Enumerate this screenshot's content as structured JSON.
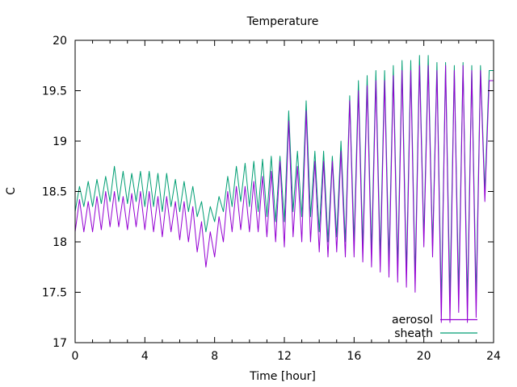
{
  "chart_data": {
    "type": "line",
    "title": "Temperature",
    "xlabel": "Time [hour]",
    "ylabel": "C",
    "xlim": [
      0,
      24
    ],
    "ylim": [
      17,
      20
    ],
    "xticks": [
      0,
      4,
      8,
      12,
      16,
      20,
      24
    ],
    "yticks": [
      17,
      17.5,
      18,
      18.5,
      19,
      19.5,
      20
    ],
    "grid": false,
    "legend_position": "bottom-right",
    "series": [
      {
        "name": "aerosol",
        "color": "#9400d3",
        "x": [
          0.0,
          0.25,
          0.5,
          0.75,
          1.0,
          1.25,
          1.5,
          1.75,
          2.0,
          2.25,
          2.5,
          2.75,
          3.0,
          3.25,
          3.5,
          3.75,
          4.0,
          4.25,
          4.5,
          4.75,
          5.0,
          5.25,
          5.5,
          5.75,
          6.0,
          6.25,
          6.5,
          6.75,
          7.0,
          7.25,
          7.5,
          7.75,
          8.0,
          8.25,
          8.5,
          8.75,
          9.0,
          9.25,
          9.5,
          9.75,
          10.0,
          10.25,
          10.5,
          10.75,
          11.0,
          11.25,
          11.5,
          11.75,
          12.0,
          12.25,
          12.5,
          12.75,
          13.0,
          13.25,
          13.5,
          13.75,
          14.0,
          14.25,
          14.5,
          14.75,
          15.0,
          15.25,
          15.5,
          15.75,
          16.0,
          16.25,
          16.5,
          16.75,
          17.0,
          17.25,
          17.5,
          17.75,
          18.0,
          18.25,
          18.5,
          18.75,
          19.0,
          19.25,
          19.5,
          19.75,
          20.0,
          20.25,
          20.5,
          20.75,
          21.0,
          21.25,
          21.5,
          21.75,
          22.0,
          22.25,
          22.5,
          22.75,
          23.0,
          23.25,
          23.5,
          23.75,
          24.0
        ],
        "y": [
          18.1,
          18.42,
          18.1,
          18.4,
          18.1,
          18.45,
          18.12,
          18.5,
          18.15,
          18.5,
          18.15,
          18.45,
          18.12,
          18.48,
          18.15,
          18.5,
          18.12,
          18.5,
          18.1,
          18.45,
          18.05,
          18.45,
          18.1,
          18.4,
          18.02,
          18.4,
          18.0,
          18.35,
          17.9,
          18.2,
          17.75,
          18.1,
          17.85,
          18.25,
          18.0,
          18.5,
          18.1,
          18.55,
          18.12,
          18.55,
          18.1,
          18.6,
          18.1,
          18.65,
          18.05,
          18.7,
          18.0,
          18.8,
          17.95,
          19.2,
          18.05,
          18.75,
          18.0,
          19.3,
          18.0,
          18.8,
          17.9,
          18.8,
          17.85,
          18.8,
          17.9,
          18.9,
          17.85,
          19.4,
          17.85,
          19.5,
          17.8,
          19.55,
          17.75,
          19.6,
          17.7,
          19.6,
          17.65,
          19.65,
          17.6,
          19.7,
          17.55,
          19.7,
          17.5,
          19.75,
          17.95,
          19.75,
          17.85,
          19.7,
          17.2,
          19.75,
          17.2,
          19.7,
          17.3,
          19.75,
          17.2,
          19.7,
          17.25,
          19.7,
          18.4,
          19.6,
          19.6
        ]
      },
      {
        "name": "sheath",
        "color": "#009e73",
        "x": [
          0.0,
          0.25,
          0.5,
          0.75,
          1.0,
          1.25,
          1.5,
          1.75,
          2.0,
          2.25,
          2.5,
          2.75,
          3.0,
          3.25,
          3.5,
          3.75,
          4.0,
          4.25,
          4.5,
          4.75,
          5.0,
          5.25,
          5.5,
          5.75,
          6.0,
          6.25,
          6.5,
          6.75,
          7.0,
          7.25,
          7.5,
          7.75,
          8.0,
          8.25,
          8.5,
          8.75,
          9.0,
          9.25,
          9.5,
          9.75,
          10.0,
          10.25,
          10.5,
          10.75,
          11.0,
          11.25,
          11.5,
          11.75,
          12.0,
          12.25,
          12.5,
          12.75,
          13.0,
          13.25,
          13.5,
          13.75,
          14.0,
          14.25,
          14.5,
          14.75,
          15.0,
          15.25,
          15.5,
          15.75,
          16.0,
          16.25,
          16.5,
          16.75,
          17.0,
          17.25,
          17.5,
          17.75,
          18.0,
          18.25,
          18.5,
          18.75,
          19.0,
          19.25,
          19.5,
          19.75,
          20.0,
          20.25,
          20.5,
          20.75,
          21.0,
          21.25,
          21.5,
          21.75,
          22.0,
          22.25,
          22.5,
          22.75,
          23.0,
          23.25,
          23.5,
          23.75,
          24.0
        ],
        "y": [
          18.3,
          18.55,
          18.35,
          18.6,
          18.35,
          18.62,
          18.38,
          18.65,
          18.4,
          18.75,
          18.4,
          18.7,
          18.38,
          18.68,
          18.4,
          18.7,
          18.35,
          18.7,
          18.35,
          18.68,
          18.3,
          18.68,
          18.35,
          18.62,
          18.3,
          18.6,
          18.3,
          18.55,
          18.25,
          18.4,
          18.1,
          18.35,
          18.2,
          18.45,
          18.3,
          18.65,
          18.35,
          18.75,
          18.4,
          18.78,
          18.35,
          18.8,
          18.3,
          18.82,
          18.25,
          18.85,
          18.2,
          18.85,
          18.2,
          19.3,
          18.3,
          18.9,
          18.25,
          19.4,
          18.25,
          18.9,
          18.1,
          18.9,
          18.0,
          18.85,
          18.05,
          19.0,
          18.0,
          19.45,
          18.0,
          19.6,
          17.95,
          19.65,
          17.9,
          19.7,
          17.85,
          19.7,
          17.8,
          19.75,
          17.75,
          19.8,
          17.7,
          19.8,
          17.65,
          19.85,
          18.05,
          19.85,
          17.95,
          19.78,
          17.4,
          19.78,
          17.45,
          19.75,
          17.5,
          19.78,
          17.4,
          19.75,
          17.45,
          19.75,
          18.5,
          19.7,
          19.7
        ]
      }
    ]
  }
}
